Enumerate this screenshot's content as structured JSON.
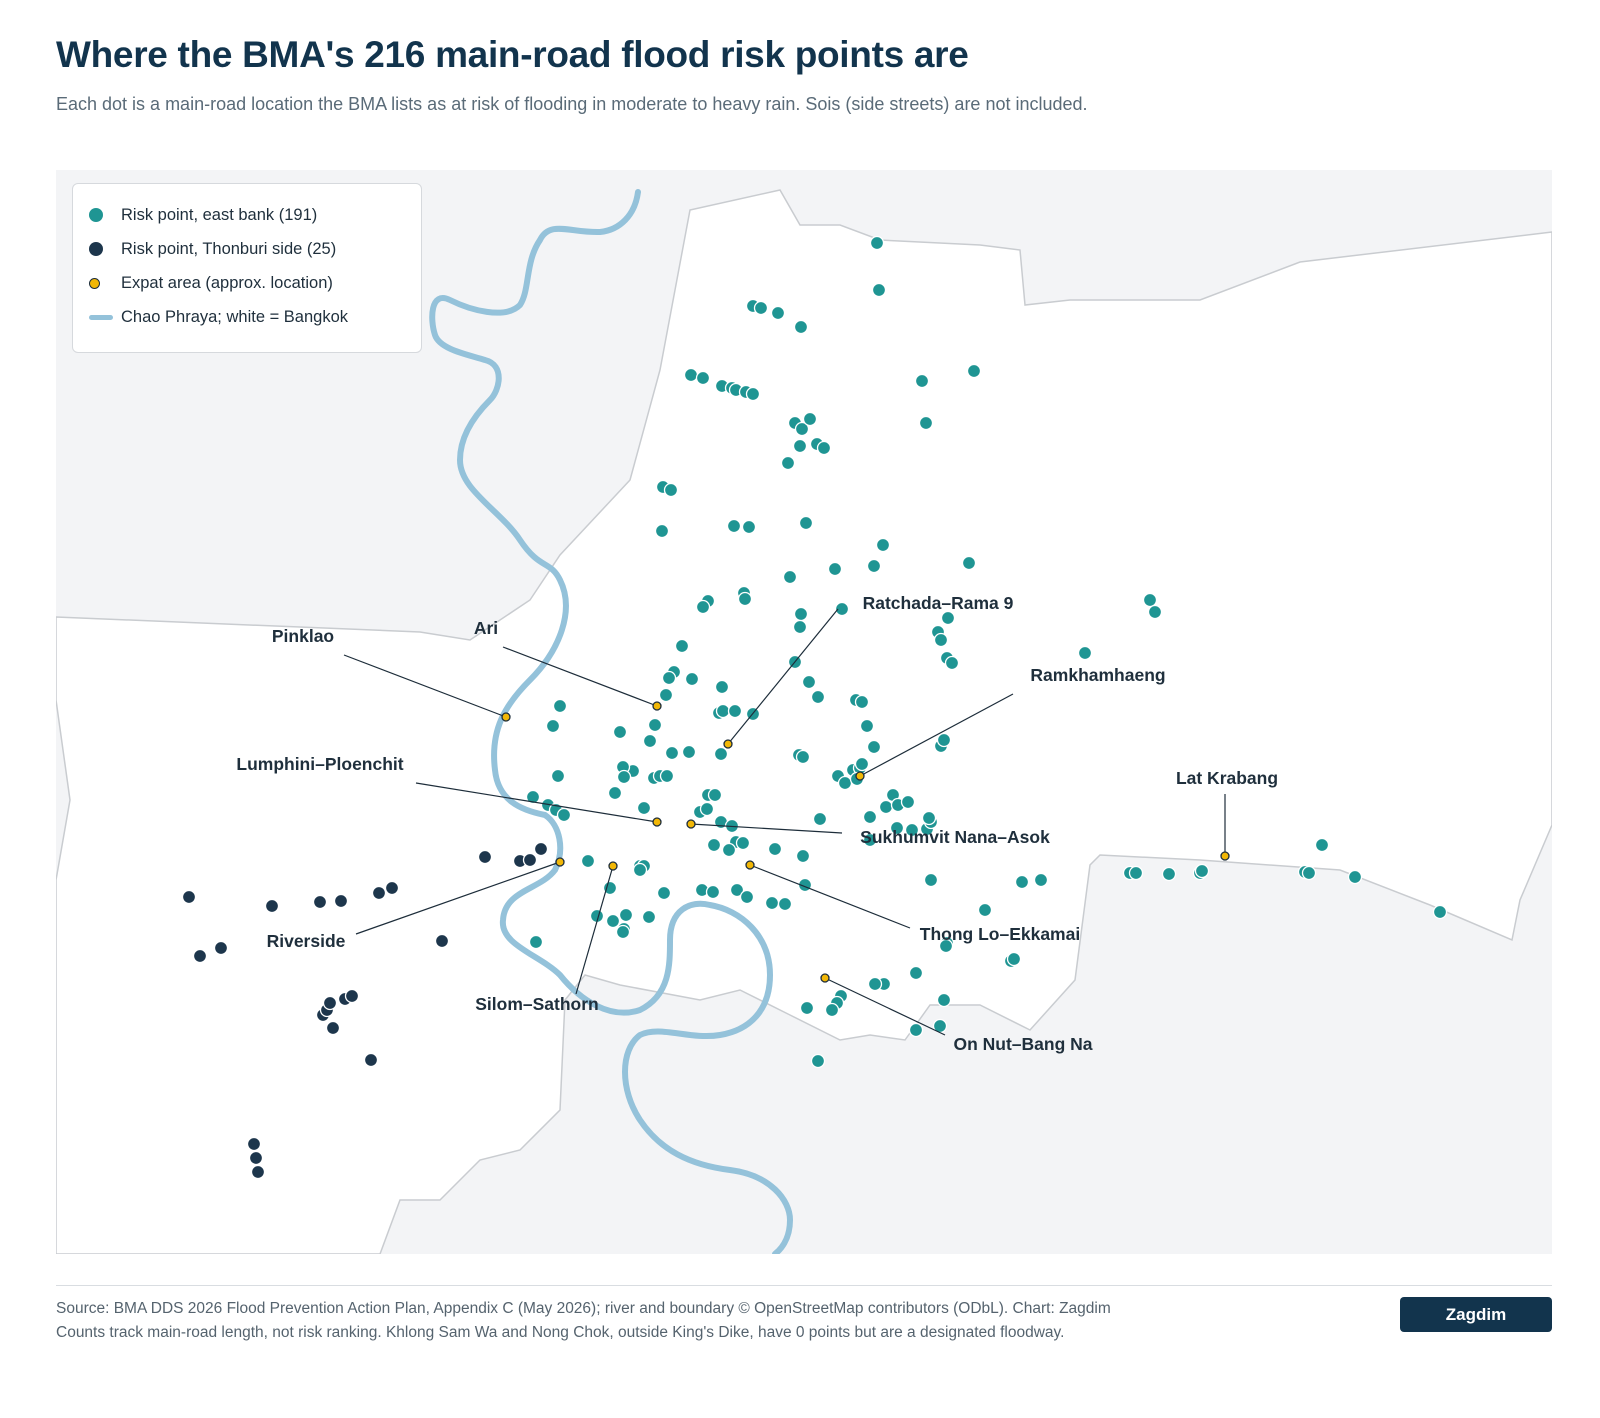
{
  "title": "Where the BMA's 216 main-road flood risk points are",
  "subtitle": "Each dot is a main-road location the BMA lists as at risk of flooding in moderate to heavy rain. Sois (side streets) are not included.",
  "legend": {
    "east_bank": "Risk point, east bank (191)",
    "thonburi": "Risk point, Thonburi side (25)",
    "expat": "Expat area (approx. location)",
    "river": "Chao Phraya; white = Bangkok"
  },
  "areas": [
    "Pinklao",
    "Ari",
    "Ratchada–Rama 9",
    "Ramkhamhaeng",
    "Lumphini–Ploenchit",
    "Sukhumvit Nana–Asok",
    "Riverside",
    "Silom–Sathorn",
    "Thong Lo–Ekkamai",
    "On Nut–Bang Na",
    "Lat Krabang"
  ],
  "source_line1": "Source: BMA DDS 2026 Flood Prevention Action Plan, Appendix C (May 2026); river and boundary © OpenStreetMap contributors (ODbL). Chart: Zagdim",
  "source_line2": "Counts track main-road length, not risk ranking. Khlong Sam Wa and Nong Chok, outside King's Dike, have 0 points but are a designated floodway.",
  "brand": "Zagdim",
  "colors": {
    "east_bank": "#1f9593",
    "thonburi": "#1d364c",
    "expat": "#f2b706",
    "river": "#94c2da",
    "bangkok_fill": "#ffffff",
    "outside_fill": "#f3f4f6"
  }
}
